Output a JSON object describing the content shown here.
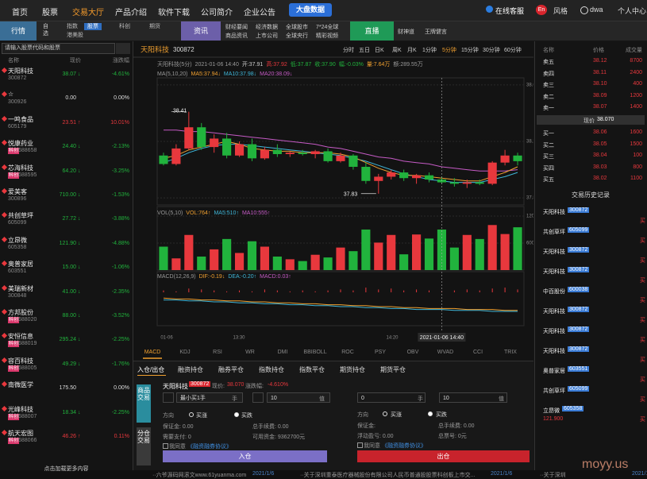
{
  "nav": {
    "items": [
      "首页",
      "股票",
      "交易大厅",
      "产品介绍",
      "软件下载",
      "公司简介",
      "企业公告"
    ],
    "active": 2,
    "data_button": "大盘数据",
    "service": "在线客服",
    "lang": "En",
    "style": "风格",
    "user": "dwa",
    "center": "个人中心"
  },
  "subnav": {
    "quote_tab": "行情",
    "fav_tab": "自选",
    "market_tabs": [
      "指数",
      "股票",
      "科创",
      "期货",
      "港美股"
    ],
    "market_active": 1,
    "news_tab": "资讯",
    "news_links": [
      "财经要闻",
      "经济数据",
      "全球股市",
      "7*24全球",
      "商品资讯",
      "上市公司",
      "全球央行",
      "精彩视频"
    ],
    "live_tab": "直播",
    "live_links": [
      "财神道",
      "王牌健言"
    ]
  },
  "stocks": {
    "search": "请输入股票代码和股票",
    "headers": [
      "名称",
      "现价",
      "涨跌幅"
    ],
    "rows": [
      {
        "name": "天阳科技",
        "code": "300872",
        "price": "38.07",
        "arrow": "↓",
        "change": "-4.61%"
      },
      {
        "name": "☆",
        "code": "300926",
        "price": "0.00",
        "change": "0.00%"
      },
      {
        "name": "一鸣食品",
        "code": "605179",
        "price": "23.51",
        "arrow": "↑",
        "change": "10.01%"
      },
      {
        "name": "悦康药业",
        "code": "688658",
        "tag": "科创",
        "price": "24.40",
        "arrow": "↓",
        "change": "-2.13%"
      },
      {
        "name": "芯海科技",
        "code": "688595",
        "tag": "科创",
        "price": "64.20",
        "arrow": "↓",
        "change": "-3.25%"
      },
      {
        "name": "爱美客",
        "code": "300896",
        "price": "710.00",
        "arrow": "↓",
        "change": "-1.53%"
      },
      {
        "name": "共创草坪",
        "code": "605099",
        "price": "27.72",
        "arrow": "↓",
        "change": "-3.88%"
      },
      {
        "name": "立昂微",
        "code": "605358",
        "price": "121.90",
        "arrow": "↓",
        "change": "-4.88%"
      },
      {
        "name": "奥普家居",
        "code": "603551",
        "price": "15.00",
        "arrow": "↓",
        "change": "-1.06%"
      },
      {
        "name": "美瑞新材",
        "code": "300848",
        "price": "41.00",
        "arrow": "↓",
        "change": "-2.35%"
      },
      {
        "name": "方邦股份",
        "code": "688020",
        "tag": "科创",
        "price": "88.00",
        "arrow": "↓",
        "change": "-3.52%"
      },
      {
        "name": "安恒信息",
        "code": "688019",
        "tag": "科创",
        "price": "295.24",
        "arrow": "↓",
        "change": "-2.25%"
      },
      {
        "name": "容百科技",
        "code": "688005",
        "tag": "科创",
        "price": "49.29",
        "arrow": "↓",
        "change": "-1.76%"
      },
      {
        "name": "南微医学",
        "price": "175.50",
        "change": "0.00%"
      },
      {
        "name": "光峰科技",
        "code": "688007",
        "tag": "科创",
        "price": "18.34",
        "arrow": "↓",
        "change": "-2.25%"
      },
      {
        "name": "航天宏图",
        "code": "688066",
        "tag": "科创",
        "price": "46.26",
        "arrow": "↑",
        "change": "0.11%"
      }
    ],
    "more": "点击加载更多内容"
  },
  "chart": {
    "title": "天阳科技",
    "code": "300872",
    "periods": [
      "分时",
      "五日",
      "日K",
      "周K",
      "月K",
      "1分钟",
      "5分钟",
      "15分钟",
      "30分钟",
      "60分钟"
    ],
    "period_active": 6,
    "info": [
      "天阳科技(5分)",
      "2021-01-06 14:40",
      "开:37.91",
      "高:37.92",
      "低:37.87",
      "收:37.90",
      "幅:-0.03%",
      "量:7.64万",
      "额:289.55万"
    ],
    "ma_label": [
      "MA(5,10,20)",
      "MA5:37.94↓",
      "MA10:37.98↓",
      "MA20:38.09↓"
    ],
    "ylim": [
      37.75,
      38.65
    ],
    "yticks": [
      {
        "value": 37.8,
        "label": "37.80"
      },
      {
        "value": 38.2,
        "label": "38.20"
      },
      {
        "value": 38.6,
        "label": "38.60"
      }
    ],
    "high_label": "38.41",
    "low_label": "37.83",
    "candles": {
      "open": [
        38.1,
        38.04,
        38.15,
        38.3,
        38.16,
        38.22,
        38.1,
        38.18,
        38.08,
        38.14,
        38.11,
        38.12,
        38.11,
        38.13,
        38.06,
        38.1,
        38.02,
        37.92,
        37.95,
        37.98,
        37.94,
        37.96,
        37.93,
        37.91,
        37.9,
        37.91,
        37.9,
        38.05,
        38.1
      ],
      "high": [
        38.12,
        38.18,
        38.41,
        38.33,
        38.25,
        38.26,
        38.2,
        38.22,
        38.16,
        38.18,
        38.13,
        38.14,
        38.14,
        38.15,
        38.12,
        38.11,
        38.05,
        37.97,
        38.0,
        38.0,
        37.97,
        37.98,
        37.95,
        37.94,
        37.93,
        37.93,
        38.06,
        38.14,
        38.12
      ],
      "low": [
        38.03,
        38.03,
        38.14,
        38.14,
        38.12,
        38.08,
        38.09,
        38.06,
        38.07,
        38.09,
        38.09,
        38.1,
        38.08,
        38.05,
        38.05,
        38.0,
        37.9,
        37.83,
        37.93,
        37.92,
        37.9,
        37.91,
        37.9,
        37.88,
        37.87,
        37.89,
        37.89,
        38.03,
        38.03
      ],
      "close": [
        38.04,
        38.15,
        38.3,
        38.16,
        38.22,
        38.1,
        38.18,
        38.08,
        38.14,
        38.11,
        38.12,
        38.11,
        38.13,
        38.06,
        38.1,
        38.02,
        37.92,
        37.95,
        37.98,
        37.94,
        37.96,
        37.93,
        37.91,
        37.9,
        37.91,
        37.9,
        38.05,
        38.1,
        38.06
      ]
    },
    "ma5": [
      38.08,
      38.1,
      38.14,
      38.16,
      38.18,
      38.2,
      38.18,
      38.15,
      38.14,
      38.13,
      38.13,
      38.12,
      38.12,
      38.12,
      38.11,
      38.09,
      38.05,
      38.01,
      37.98,
      37.96,
      37.96,
      37.95,
      37.94,
      37.93,
      37.92,
      37.92,
      37.95,
      37.98,
      38.02
    ],
    "ma10": [
      38.05,
      38.08,
      38.12,
      38.15,
      38.17,
      38.18,
      38.18,
      38.17,
      38.16,
      38.15,
      38.14,
      38.13,
      38.12,
      38.11,
      38.1,
      38.08,
      38.06,
      38.03,
      38.0,
      37.97,
      37.95,
      37.93,
      37.92,
      37.91,
      37.91,
      37.91,
      37.93,
      37.95,
      37.98
    ],
    "ma20": [
      38.28,
      38.28,
      38.27,
      38.27,
      38.26,
      38.25,
      38.24,
      38.23,
      38.22,
      38.21,
      38.2,
      38.19,
      38.18,
      38.16,
      38.15,
      38.13,
      38.11,
      38.09,
      38.08,
      38.06,
      38.05,
      38.04,
      38.02,
      38.01,
      38.0,
      37.99,
      37.99,
      37.99,
      38.0
    ],
    "vol_label": [
      "VOL(5,10)",
      "VOL:764↑",
      "MA5:510↑",
      "MA10:555↑"
    ],
    "vlim": [
      0,
      1340
    ],
    "vticks": [
      600,
      1200
    ],
    "volume": [
      520,
      260,
      780,
      300,
      460,
      690,
      380,
      640,
      520,
      300,
      240,
      200,
      340,
      280,
      500,
      420,
      900,
      610,
      780,
      350,
      790,
      700,
      900,
      500,
      780,
      690,
      1000,
      800,
      950
    ],
    "macd_label": [
      "MACD(12,26,9)",
      "DIF:-0.19↓",
      "DEA:-0.20↑",
      "MACD:0.03↑"
    ],
    "mlim": [
      -0.35,
      0.2
    ],
    "macd": [
      0.02,
      0.01,
      0.04,
      0.03,
      0.02,
      0.01,
      0.02,
      0.01,
      0.03,
      0.02,
      0.01,
      0.02,
      0.01,
      0.02,
      0.03,
      0.02,
      0.05,
      0.03,
      0.04,
      0.02,
      0.03,
      0.02,
      0.01,
      0.02,
      0.03,
      0.02,
      0.04,
      0.05,
      0.03
    ],
    "dif": [
      -0.06,
      -0.07,
      -0.07,
      -0.08,
      -0.08,
      -0.09,
      -0.09,
      -0.1,
      -0.1,
      -0.11,
      -0.11,
      -0.12,
      -0.12,
      -0.13,
      -0.13,
      -0.14,
      -0.14,
      -0.15,
      -0.15,
      -0.16,
      -0.16,
      -0.17,
      -0.17,
      -0.17,
      -0.18,
      -0.18,
      -0.18,
      -0.19,
      -0.19
    ],
    "dea": [
      -0.08,
      -0.08,
      -0.09,
      -0.09,
      -0.1,
      -0.1,
      -0.11,
      -0.11,
      -0.12,
      -0.12,
      -0.13,
      -0.13,
      -0.14,
      -0.14,
      -0.15,
      -0.15,
      -0.16,
      -0.16,
      -0.17,
      -0.17,
      -0.18,
      -0.18,
      -0.18,
      -0.19,
      -0.19,
      -0.19,
      -0.2,
      -0.2,
      -0.2
    ],
    "xlabels": [
      "01-06",
      "13:30",
      "14:20"
    ],
    "crosshair_time": "2021-01-06 14:40",
    "indicators": [
      "MACD",
      "KDJ",
      "RSI",
      "WR",
      "DMI",
      "BBIBOLL",
      "ROC",
      "PSY",
      "OBV",
      "WVAD",
      "CCI",
      "TRIX"
    ],
    "indicator_active": 0
  },
  "trade": {
    "tabs": [
      "入仓/出仓",
      "融资持仓",
      "融券平仓",
      "指数持仓",
      "指数平仓",
      "期货持仓",
      "期货平仓"
    ],
    "active": 0,
    "side": [
      "商品交易",
      "分仓交易"
    ],
    "buy": {
      "name": "天阳科技",
      "code": "300872",
      "price_label": "现价:",
      "price": "38.070",
      "change_label": "涨跌幅:",
      "change": "-4.610%",
      "lots": "最小买1手",
      "lot_unit": "手",
      "amount": "10",
      "amount_unit": "值",
      "direction": "方向",
      "up": "买涨",
      "down": "买跌",
      "margin": "保证金: 0.00",
      "fee": "总手续费: 0.00",
      "pay": "需要支付: 0",
      "funds": "可用资金: 9362700元",
      "agree": "我同意",
      "protocol": "《融资融券协议》",
      "button": "入仓"
    },
    "sell": {
      "lots": "0",
      "lot_unit": "手",
      "amount": "10",
      "amount_unit": "值",
      "direction": "方向",
      "up": "买涨",
      "down": "买跌",
      "margin": "保证金:",
      "fee": "总手续费: 0.00",
      "pnl": "浮动盈亏: 0.00",
      "count": "总票号: 0元",
      "agree": "我同意",
      "protocol": "《融资融券协议》",
      "button": "出仓"
    }
  },
  "book": {
    "headers": [
      "名称",
      "价格",
      "成交量"
    ],
    "asks": [
      [
        "卖五",
        "38.12",
        "8700"
      ],
      [
        "卖四",
        "38.11",
        "2400"
      ],
      [
        "卖三",
        "38.10",
        "400"
      ],
      [
        "卖二",
        "38.09",
        "1200"
      ],
      [
        "卖一",
        "38.07",
        "1400"
      ]
    ],
    "current_label": "现价",
    "current": "38.070",
    "bids": [
      [
        "买一",
        "38.06",
        "1600"
      ],
      [
        "买二",
        "38.05",
        "1500"
      ],
      [
        "买三",
        "38.04",
        "100"
      ],
      [
        "买四",
        "38.03",
        "800"
      ],
      [
        "买五",
        "38.02",
        "1100"
      ]
    ]
  },
  "history": {
    "title": "交易历史记录",
    "rows": [
      {
        "name": "天阳科技",
        "code": "300872",
        "side": "买"
      },
      {
        "name": "共创草坪",
        "code": "605099",
        "side": "买"
      },
      {
        "name": "天阳科技",
        "code": "300872",
        "side": "买"
      },
      {
        "name": "天阳科技",
        "code": "300872",
        "side": "买"
      },
      {
        "name": "中百股份",
        "code": "600038",
        "side": "买"
      },
      {
        "name": "天阳科技",
        "code": "300872",
        "side": "买"
      },
      {
        "name": "天阳科技",
        "code": "300872",
        "side": "买"
      },
      {
        "name": "天阳科技",
        "code": "300872",
        "side": "买"
      },
      {
        "name": "奥普家居",
        "code": "603551",
        "side": "买"
      },
      {
        "name": "共创草坪",
        "code": "605099",
        "side": "买"
      },
      {
        "name": "立昂微",
        "code": "605358",
        "side": "买",
        "price": "121.900"
      }
    ]
  },
  "ticker": [
    "··六爷源码网滚文www.61yuanma.com",
    "2021/1/6",
    "··关于深圳重泰医疗器械股份有限公司人民币普通股股票科创板上市交...",
    "2021/1/6",
    "··关于深圳",
    "2021/1/6"
  ],
  "watermark": "moyy.us"
}
